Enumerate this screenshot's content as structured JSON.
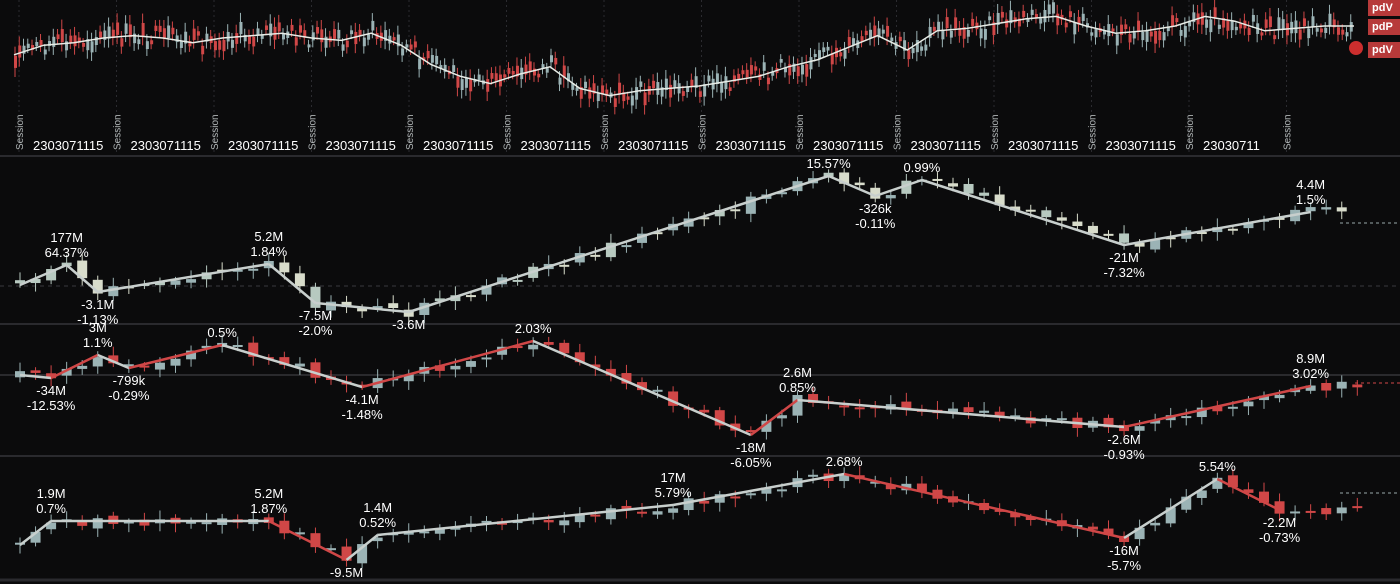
{
  "colors": {
    "background": "#0b0b0c",
    "panel_border": "#2a2a2e",
    "grid": "#1e1e22",
    "up": "#9bb3b5",
    "down": "#d04747",
    "neutral": "#d8dccb",
    "zigzag_gray": "#c8cfcd",
    "zigzag_red": "#d04747",
    "text": "#ffffff",
    "tag_bg": "#b73a3a"
  },
  "top_panel": {
    "tags": [
      "pdV",
      "pdP",
      "pdV"
    ],
    "time_label": "2303071115",
    "last_time_label": "23030711",
    "session_label": "Session",
    "session_count": 14,
    "time_label_count": 13
  },
  "chart_data": [
    {
      "type": "candlestick",
      "id": "panel-1",
      "price_line": [
        88,
        92,
        93,
        95,
        96,
        95,
        93,
        95,
        96,
        97,
        95,
        94,
        97,
        92,
        84,
        79,
        76,
        80,
        83,
        74,
        71,
        73,
        74,
        75,
        77,
        79,
        83,
        86,
        91,
        96,
        90,
        98,
        99,
        101,
        103,
        104,
        100,
        97,
        98,
        100,
        104,
        102,
        98,
        99,
        100,
        100
      ],
      "zigzag": [
        {
          "i": 0,
          "y": 285,
          "label": [],
          "pos": "none"
        },
        {
          "i": 3,
          "y": 265,
          "label": [
            "177M",
            "64.37%"
          ],
          "pos": "above"
        },
        {
          "i": 5,
          "y": 292,
          "label": [
            "-3.1M",
            "-1.13%"
          ],
          "pos": "below"
        },
        {
          "i": 16,
          "y": 264,
          "label": [
            "5.2M",
            "1.84%"
          ],
          "pos": "above"
        },
        {
          "i": 19,
          "y": 303,
          "label": [
            "-7.5M",
            "-2.0%"
          ],
          "pos": "below"
        },
        {
          "i": 25,
          "y": 312,
          "label": [
            "-3.6M"
          ],
          "pos": "below"
        },
        {
          "i": 52,
          "y": 176,
          "label": [
            "15.57%"
          ],
          "pos": "above"
        },
        {
          "i": 55,
          "y": 196,
          "label": [
            "-326k",
            "-0.11%"
          ],
          "pos": "below"
        },
        {
          "i": 58,
          "y": 180,
          "label": [
            "0.99%"
          ],
          "pos": "above"
        },
        {
          "i": 71,
          "y": 245,
          "label": [
            "-21M",
            "-7.32%"
          ],
          "pos": "below"
        },
        {
          "i": 83,
          "y": 212,
          "label": [
            "4.4M",
            "1.5%"
          ],
          "pos": "above"
        }
      ]
    },
    {
      "type": "candlestick",
      "id": "panel-2",
      "zigzag": [
        {
          "i": 0,
          "y": 375,
          "label": [],
          "pos": "none",
          "color": "gray"
        },
        {
          "i": 2,
          "y": 378,
          "label": [
            "-34M",
            "-12.53%"
          ],
          "pos": "below",
          "color": "red"
        },
        {
          "i": 5,
          "y": 355,
          "label": [
            "3M",
            "1.1%"
          ],
          "pos": "above",
          "color": "gray"
        },
        {
          "i": 7,
          "y": 368,
          "label": [
            "-799k",
            "-0.29%"
          ],
          "pos": "below",
          "color": "red"
        },
        {
          "i": 13,
          "y": 345,
          "label": [
            "0.5%"
          ],
          "pos": "above",
          "color": "gray"
        },
        {
          "i": 22,
          "y": 387,
          "label": [
            "-4.1M",
            "-1.48%"
          ],
          "pos": "below",
          "color": "red"
        },
        {
          "i": 33,
          "y": 341,
          "label": [
            "2.03%"
          ],
          "pos": "above",
          "color": "gray"
        },
        {
          "i": 47,
          "y": 435,
          "label": [
            "-18M",
            "-6.05%"
          ],
          "pos": "below",
          "color": "red"
        },
        {
          "i": 50,
          "y": 400,
          "label": [
            "2.6M",
            "0.85%"
          ],
          "pos": "above",
          "color": "gray"
        },
        {
          "i": 71,
          "y": 427,
          "label": [
            "-2.6M",
            "-0.93%"
          ],
          "pos": "below",
          "color": "red"
        },
        {
          "i": 83,
          "y": 386,
          "label": [
            "8.9M",
            "3.02%"
          ],
          "pos": "above",
          "color": "none"
        }
      ]
    },
    {
      "type": "candlestick",
      "id": "panel-3",
      "zigzag": [
        {
          "i": 0,
          "y": 545,
          "label": [],
          "pos": "none",
          "color": "gray"
        },
        {
          "i": 2,
          "y": 521,
          "label": [
            "1.9M",
            "0.7%"
          ],
          "pos": "above",
          "color": "gray"
        },
        {
          "i": 16,
          "y": 521,
          "label": [
            "5.2M",
            "1.87%"
          ],
          "pos": "above",
          "color": "red"
        },
        {
          "i": 21,
          "y": 560,
          "label": [
            "-9.5M"
          ],
          "pos": "below",
          "color": "gray"
        },
        {
          "i": 23,
          "y": 535,
          "label": [
            "1.4M",
            "0.52%"
          ],
          "pos": "above",
          "color": "gray"
        },
        {
          "i": 42,
          "y": 505,
          "label": [
            "17M",
            "5.79%"
          ],
          "pos": "above",
          "color": "gray"
        },
        {
          "i": 53,
          "y": 474,
          "label": [
            "2.68%"
          ],
          "pos": "above",
          "color": "red"
        },
        {
          "i": 71,
          "y": 538,
          "label": [
            "-16M",
            "-5.7%"
          ],
          "pos": "below",
          "color": "gray"
        },
        {
          "i": 77,
          "y": 479,
          "label": [
            "5.54%"
          ],
          "pos": "above",
          "color": "red"
        },
        {
          "i": 81,
          "y": 510,
          "label": [
            "-2.2M",
            "-0.73%"
          ],
          "pos": "below",
          "color": "none"
        }
      ]
    }
  ]
}
